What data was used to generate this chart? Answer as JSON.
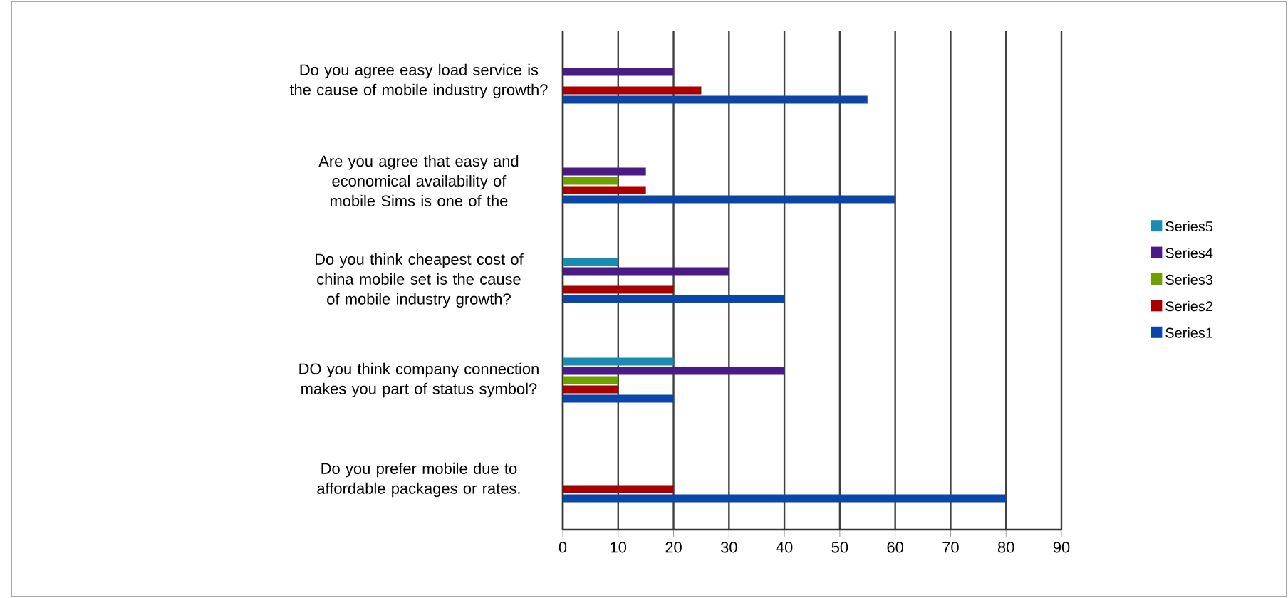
{
  "chart_data": {
    "type": "bar",
    "orientation": "horizontal",
    "categories": [
      "Do you agree easy load service is the cause of mobile industry growth?",
      "Are you agree that easy and economical availability of mobile Sims is one of the",
      "Do you think cheapest cost of china mobile set is the cause of mobile industry growth?",
      "DO you think company connection makes you part of status symbol?",
      "Do you prefer mobile due to affordable packages or rates."
    ],
    "series": [
      {
        "name": "Series1",
        "color": "#0a46a8",
        "values": [
          55,
          60,
          40,
          20,
          80
        ]
      },
      {
        "name": "Series2",
        "color": "#a80000",
        "values": [
          25,
          15,
          20,
          10,
          20
        ]
      },
      {
        "name": "Series3",
        "color": "#70a000",
        "values": [
          null,
          10,
          null,
          10,
          null
        ]
      },
      {
        "name": "Series4",
        "color": "#4a1a86",
        "values": [
          20,
          15,
          30,
          40,
          null
        ]
      },
      {
        "name": "Series5",
        "color": "#1a8cb4",
        "values": [
          null,
          null,
          10,
          20,
          null
        ]
      }
    ],
    "xlim": [
      0,
      90
    ],
    "xticks": [
      0,
      10,
      20,
      30,
      40,
      50,
      60,
      70,
      80,
      90
    ],
    "grid": "x",
    "legend": "right"
  }
}
